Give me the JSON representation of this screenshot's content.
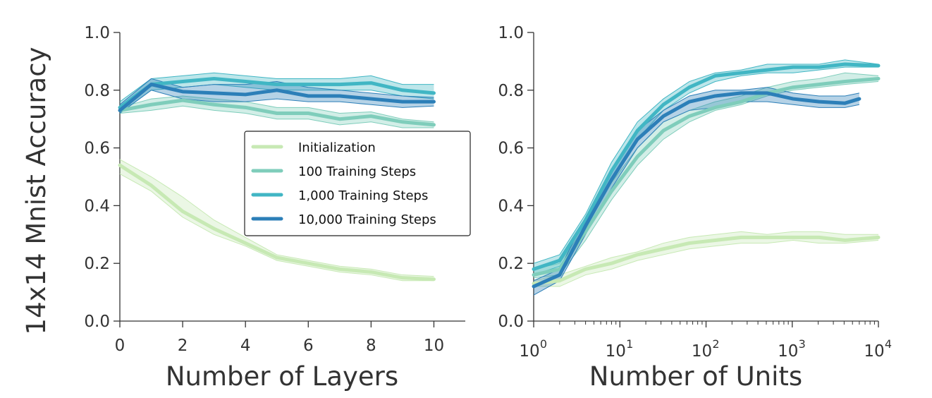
{
  "chart_data": [
    {
      "type": "line",
      "xlabel": "Number of Layers",
      "ylabel": "14x14 Mnist Accuracy",
      "xscale": "linear",
      "xlim": [
        0,
        11
      ],
      "ylim": [
        0,
        1
      ],
      "xticks": [
        0,
        2,
        4,
        6,
        8,
        10
      ],
      "xtick_labels": [
        "0",
        "2",
        "4",
        "6",
        "8",
        "10"
      ],
      "yticks": [
        0,
        0.2,
        0.4,
        0.6,
        0.8,
        1.0
      ],
      "ytick_labels": [
        "0.0",
        "0.2",
        "0.4",
        "0.6",
        "0.8",
        "1.0"
      ],
      "legend_position": "center-right",
      "series": [
        {
          "name": "Initialization",
          "color": "#c7e9b4",
          "x": [
            0,
            1,
            2,
            3,
            4,
            5,
            6,
            7,
            8,
            9,
            10
          ],
          "y": [
            0.54,
            0.47,
            0.38,
            0.32,
            0.27,
            0.22,
            0.2,
            0.18,
            0.17,
            0.15,
            0.145
          ],
          "lower": [
            0.51,
            0.45,
            0.36,
            0.3,
            0.26,
            0.21,
            0.19,
            0.17,
            0.16,
            0.14,
            0.14
          ],
          "upper": [
            0.56,
            0.5,
            0.43,
            0.35,
            0.29,
            0.23,
            0.21,
            0.19,
            0.18,
            0.16,
            0.155
          ]
        },
        {
          "name": "100 Training Steps",
          "color": "#7fcdbb",
          "x": [
            0,
            1,
            2,
            3,
            4,
            5,
            6,
            7,
            8,
            9,
            10
          ],
          "y": [
            0.73,
            0.75,
            0.765,
            0.75,
            0.74,
            0.72,
            0.72,
            0.7,
            0.71,
            0.69,
            0.68
          ],
          "lower": [
            0.72,
            0.73,
            0.745,
            0.73,
            0.72,
            0.7,
            0.7,
            0.68,
            0.69,
            0.67,
            0.67
          ],
          "upper": [
            0.74,
            0.77,
            0.78,
            0.77,
            0.76,
            0.74,
            0.74,
            0.72,
            0.725,
            0.7,
            0.69
          ]
        },
        {
          "name": "1,000 Training Steps",
          "color": "#41b6c4",
          "x": [
            0,
            1,
            2,
            3,
            4,
            5,
            6,
            7,
            8,
            9,
            10
          ],
          "y": [
            0.74,
            0.82,
            0.83,
            0.84,
            0.83,
            0.82,
            0.82,
            0.82,
            0.825,
            0.8,
            0.79
          ],
          "lower": [
            0.72,
            0.8,
            0.81,
            0.82,
            0.81,
            0.8,
            0.8,
            0.8,
            0.8,
            0.78,
            0.77
          ],
          "upper": [
            0.76,
            0.84,
            0.85,
            0.86,
            0.85,
            0.84,
            0.84,
            0.84,
            0.85,
            0.82,
            0.82
          ]
        },
        {
          "name": "10,000 Training Steps",
          "color": "#2c7fb8",
          "x": [
            0,
            1,
            2,
            3,
            4,
            5,
            6,
            7,
            8,
            9,
            10
          ],
          "y": [
            0.73,
            0.82,
            0.795,
            0.79,
            0.785,
            0.8,
            0.78,
            0.78,
            0.77,
            0.76,
            0.76
          ],
          "lower": [
            0.72,
            0.8,
            0.77,
            0.76,
            0.76,
            0.77,
            0.76,
            0.76,
            0.75,
            0.74,
            0.745
          ],
          "upper": [
            0.75,
            0.84,
            0.81,
            0.82,
            0.82,
            0.83,
            0.81,
            0.8,
            0.79,
            0.78,
            0.775
          ]
        }
      ]
    },
    {
      "type": "line",
      "xlabel": "Number of Units",
      "ylabel": "",
      "xscale": "log",
      "xlim": [
        1,
        10000
      ],
      "ylim": [
        0,
        1
      ],
      "xticks": [
        1,
        10,
        100,
        1000,
        10000
      ],
      "xtick_labels": [
        {
          "base": "10",
          "exp": "0"
        },
        {
          "base": "10",
          "exp": "1"
        },
        {
          "base": "10",
          "exp": "2"
        },
        {
          "base": "10",
          "exp": "3"
        },
        {
          "base": "10",
          "exp": "4"
        }
      ],
      "yticks": [
        0,
        0.2,
        0.4,
        0.6,
        0.8,
        1.0
      ],
      "ytick_labels": [
        "0.0",
        "0.2",
        "0.4",
        "0.6",
        "0.8",
        "1.0"
      ],
      "series": [
        {
          "name": "Initialization",
          "color": "#c7e9b4",
          "x": [
            1,
            2,
            4,
            8,
            16,
            32,
            64,
            128,
            256,
            512,
            1024,
            2048,
            4096,
            10000
          ],
          "y": [
            0.13,
            0.14,
            0.18,
            0.2,
            0.23,
            0.25,
            0.27,
            0.28,
            0.29,
            0.29,
            0.29,
            0.29,
            0.28,
            0.29
          ],
          "lower": [
            0.12,
            0.12,
            0.16,
            0.18,
            0.21,
            0.23,
            0.25,
            0.26,
            0.27,
            0.27,
            0.28,
            0.27,
            0.27,
            0.28
          ],
          "upper": [
            0.14,
            0.16,
            0.19,
            0.22,
            0.24,
            0.27,
            0.29,
            0.3,
            0.31,
            0.3,
            0.31,
            0.31,
            0.3,
            0.3
          ]
        },
        {
          "name": "100 Training Steps",
          "color": "#7fcdbb",
          "x": [
            1,
            2,
            4,
            8,
            16,
            32,
            64,
            128,
            256,
            512,
            1024,
            2048,
            4096,
            10000
          ],
          "y": [
            0.16,
            0.18,
            0.31,
            0.45,
            0.57,
            0.66,
            0.71,
            0.74,
            0.76,
            0.79,
            0.81,
            0.82,
            0.83,
            0.84
          ],
          "lower": [
            0.15,
            0.16,
            0.28,
            0.42,
            0.54,
            0.63,
            0.69,
            0.73,
            0.75,
            0.78,
            0.8,
            0.81,
            0.82,
            0.83
          ],
          "upper": [
            0.18,
            0.2,
            0.33,
            0.48,
            0.6,
            0.69,
            0.73,
            0.76,
            0.78,
            0.81,
            0.83,
            0.84,
            0.86,
            0.85
          ]
        },
        {
          "name": "1,000 Training Steps",
          "color": "#41b6c4",
          "x": [
            1,
            2,
            4,
            8,
            16,
            32,
            64,
            128,
            256,
            512,
            1024,
            2048,
            4096,
            10000
          ],
          "y": [
            0.18,
            0.21,
            0.35,
            0.52,
            0.66,
            0.75,
            0.81,
            0.85,
            0.86,
            0.87,
            0.88,
            0.88,
            0.89,
            0.885
          ],
          "lower": [
            0.16,
            0.19,
            0.32,
            0.49,
            0.63,
            0.73,
            0.79,
            0.83,
            0.85,
            0.86,
            0.86,
            0.87,
            0.88,
            0.88
          ],
          "upper": [
            0.2,
            0.23,
            0.37,
            0.55,
            0.69,
            0.77,
            0.83,
            0.86,
            0.87,
            0.89,
            0.89,
            0.89,
            0.905,
            0.89
          ]
        },
        {
          "name": "10,000 Training Steps",
          "color": "#2c7fb8",
          "x": [
            1,
            2,
            4,
            8,
            16,
            32,
            64,
            128,
            256,
            512,
            1024,
            2048,
            4096,
            6000
          ],
          "y": [
            0.12,
            0.16,
            0.33,
            0.49,
            0.63,
            0.71,
            0.76,
            0.78,
            0.79,
            0.79,
            0.77,
            0.76,
            0.755,
            0.77
          ],
          "lower": [
            0.09,
            0.14,
            0.3,
            0.46,
            0.6,
            0.69,
            0.73,
            0.74,
            0.76,
            0.76,
            0.75,
            0.74,
            0.74,
            0.75
          ],
          "upper": [
            0.14,
            0.18,
            0.36,
            0.52,
            0.66,
            0.73,
            0.78,
            0.8,
            0.8,
            0.81,
            0.79,
            0.78,
            0.78,
            0.79
          ]
        }
      ]
    }
  ]
}
